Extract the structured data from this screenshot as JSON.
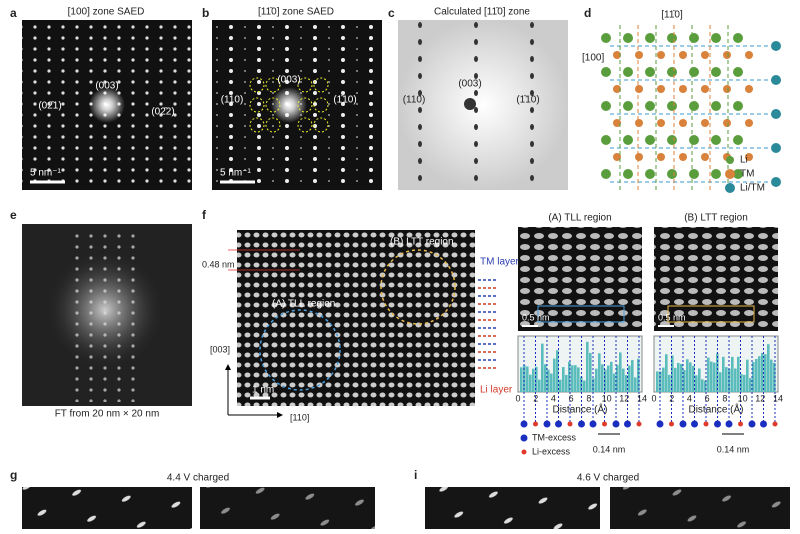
{
  "panels": {
    "a": {
      "label": "a",
      "title": "[100] zone SAED",
      "spot_center": "(003)",
      "spot_left": "(02̄1)",
      "spot_right": "(02̄2)",
      "scale": "5 nm⁻¹"
    },
    "b": {
      "label": "b",
      "title": "[11̄0] zone SAED",
      "spot_center": "(003)",
      "spot_left": "(110)",
      "spot_right": "(1̄10)",
      "scale": "5 nm⁻¹"
    },
    "c": {
      "label": "c",
      "title": "Calculated [11̄0] zone",
      "spot_center": "(003)",
      "spot_left": "(110)",
      "spot_right": "(1̄10)"
    },
    "d": {
      "label": "d",
      "dir_top": "[11̄0]",
      "dir_left": "[100]",
      "legend": [
        "Li",
        "TM",
        "Li/TM"
      ]
    },
    "e": {
      "label": "e",
      "caption": "FT from 20 nm × 20 nm"
    },
    "f": {
      "label": "f",
      "spacing": "0.48 nm",
      "region_b": "(B) LTT region",
      "region_a": "(A) TLL region",
      "tm_layer": "TM layer",
      "li_layer": "Li layer",
      "axis_vertical": "[003]",
      "axis_horizontal": "[110]",
      "scale": "1 nm",
      "inset_a": {
        "title": "(A) TLL region",
        "scale": "0.5 nm"
      },
      "inset_b": {
        "title": "(B) LTT region",
        "scale": "0.5 nm"
      },
      "profile_ticks": [
        0,
        2,
        4,
        6,
        8,
        10,
        12,
        14
      ],
      "profile_xlabel": "Distance (Å)",
      "gap": "0.14 nm",
      "legend": [
        "TM-excess",
        "Li-excess"
      ]
    },
    "g": {
      "label": "g",
      "title": "4.4 V charged"
    },
    "i": {
      "label": "i",
      "title": "4.6 V charged"
    }
  }
}
